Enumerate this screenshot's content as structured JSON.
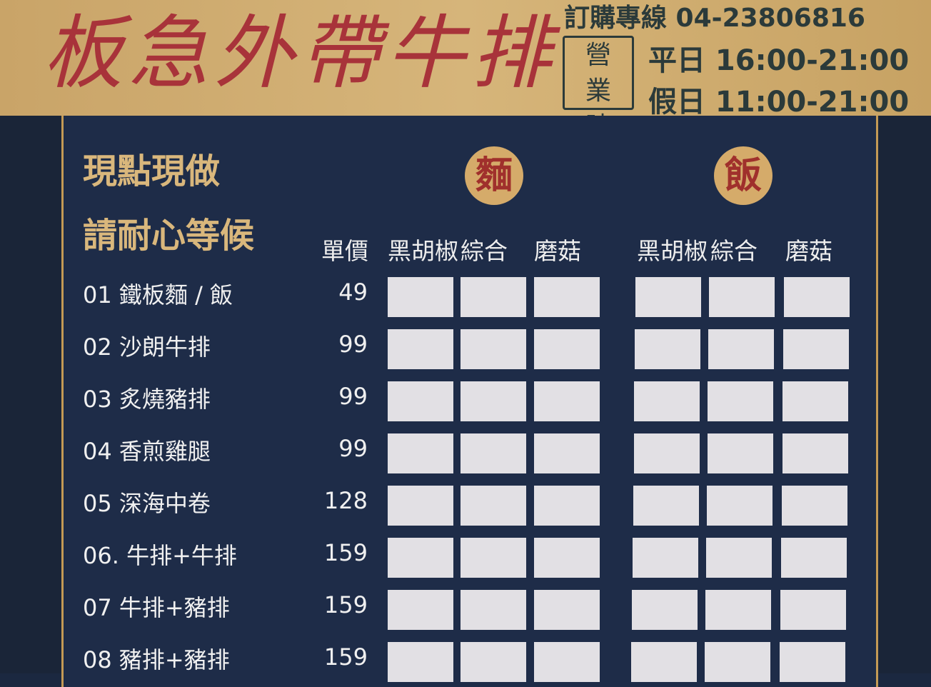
{
  "header": {
    "title": "板急外帶牛排",
    "hotline": "訂購專線 04-23806816",
    "hours_label": "營業時間",
    "weekday": "平日 16:00-21:00",
    "holiday": "假日 11:00-21:00"
  },
  "notes": [
    "現點現做",
    "請耐心等候"
  ],
  "groups": {
    "noodle": "麵",
    "rice": "飯"
  },
  "columns": {
    "price": "單價",
    "flavors": [
      "黑胡椒",
      "綜合",
      "磨菇",
      "黑胡椒",
      "綜合",
      "磨菇"
    ]
  },
  "items": [
    {
      "name": "01 鐵板麵 / 飯",
      "price": "49"
    },
    {
      "name": "02 沙朗牛排",
      "price": "99"
    },
    {
      "name": "03 炙燒豬排",
      "price": "99"
    },
    {
      "name": "04 香煎雞腿",
      "price": "99"
    },
    {
      "name": "05 深海中卷",
      "price": "128"
    },
    {
      "name": "06. 牛排+牛排",
      "price": "159"
    },
    {
      "name": "07 牛排+豬排",
      "price": "159"
    },
    {
      "name": "08 豬排+豬排",
      "price": "159"
    }
  ],
  "colors": {
    "gold": "#d6b57a",
    "navy": "#1e2c48",
    "title_red": "#a8333a"
  }
}
